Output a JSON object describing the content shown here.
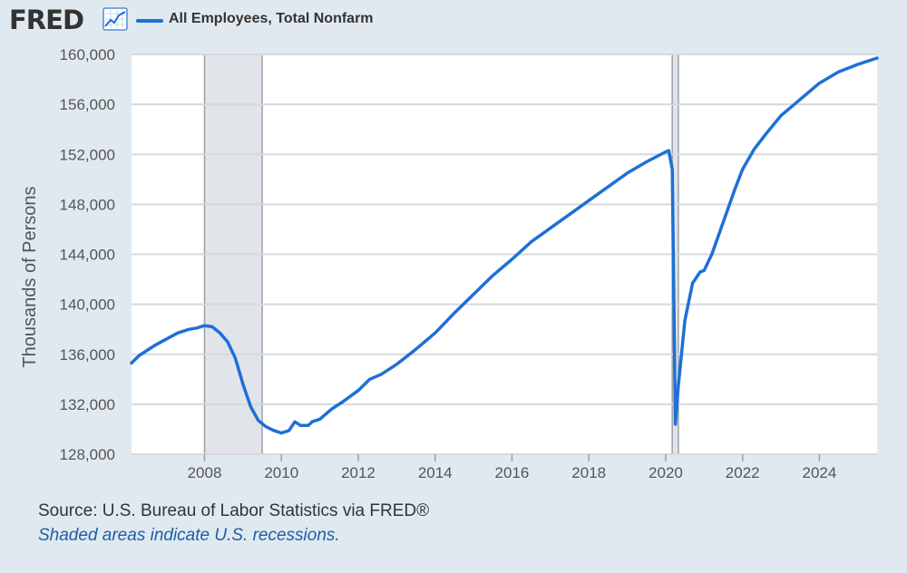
{
  "header": {
    "logo_text": "FRED",
    "logo_icon": "line-chart-icon",
    "legend_label": "All Employees, Total Nonfarm",
    "series_color": "#1f6fd6"
  },
  "footer": {
    "source": "Source: U.S. Bureau of Labor Statistics via FRED®",
    "note": "Shaded areas indicate U.S. recessions."
  },
  "chart_data": {
    "type": "line",
    "title": "",
    "xlabel": "",
    "ylabel": "Thousands of Persons",
    "xlim": [
      2006.1,
      2025.5
    ],
    "ylim": [
      128000,
      160000
    ],
    "grid": "horizontal",
    "yticks": [
      128000,
      132000,
      136000,
      140000,
      144000,
      148000,
      152000,
      156000,
      160000
    ],
    "ytick_labels": [
      "128,000",
      "132,000",
      "136,000",
      "140,000",
      "144,000",
      "148,000",
      "152,000",
      "156,000",
      "160,000"
    ],
    "xticks": [
      2008,
      2010,
      2012,
      2014,
      2016,
      2018,
      2020,
      2022,
      2024
    ],
    "xtick_labels": [
      "2008",
      "2010",
      "2012",
      "2014",
      "2016",
      "2018",
      "2020",
      "2022",
      "2024"
    ],
    "recessions": [
      [
        2008.0,
        2009.5
      ],
      [
        2020.17,
        2020.33
      ]
    ],
    "series": [
      {
        "name": "All Employees, Total Nonfarm",
        "x": [
          2006.1,
          2006.3,
          2006.5,
          2006.7,
          2007.0,
          2007.3,
          2007.6,
          2007.8,
          2008.0,
          2008.2,
          2008.4,
          2008.6,
          2008.8,
          2009.0,
          2009.2,
          2009.4,
          2009.6,
          2009.8,
          2010.0,
          2010.2,
          2010.35,
          2010.5,
          2010.7,
          2010.8,
          2011.0,
          2011.3,
          2011.6,
          2012.0,
          2012.3,
          2012.6,
          2013.0,
          2013.5,
          2014.0,
          2014.5,
          2015.0,
          2015.5,
          2016.0,
          2016.5,
          2017.0,
          2017.5,
          2018.0,
          2018.5,
          2019.0,
          2019.5,
          2020.0,
          2020.08,
          2020.17,
          2020.25,
          2020.33,
          2020.5,
          2020.7,
          2020.9,
          2021.0,
          2021.2,
          2021.5,
          2021.8,
          2022.0,
          2022.3,
          2022.6,
          2023.0,
          2023.5,
          2024.0,
          2024.5,
          2025.0,
          2025.5
        ],
        "values": [
          135300,
          135900,
          136300,
          136700,
          137200,
          137700,
          138000,
          138100,
          138300,
          138200,
          137700,
          137000,
          135700,
          133600,
          131800,
          130700,
          130200,
          129900,
          129700,
          129900,
          130600,
          130300,
          130300,
          130600,
          130800,
          131600,
          132200,
          133100,
          134000,
          134400,
          135200,
          136400,
          137700,
          139300,
          140800,
          142300,
          143600,
          145000,
          146100,
          147200,
          148300,
          149400,
          150500,
          151400,
          152200,
          152300,
          150800,
          130400,
          133500,
          138700,
          141700,
          142600,
          142700,
          144000,
          146600,
          149200,
          150800,
          152400,
          153600,
          155100,
          156400,
          157700,
          158600,
          159200,
          159700
        ]
      }
    ]
  }
}
